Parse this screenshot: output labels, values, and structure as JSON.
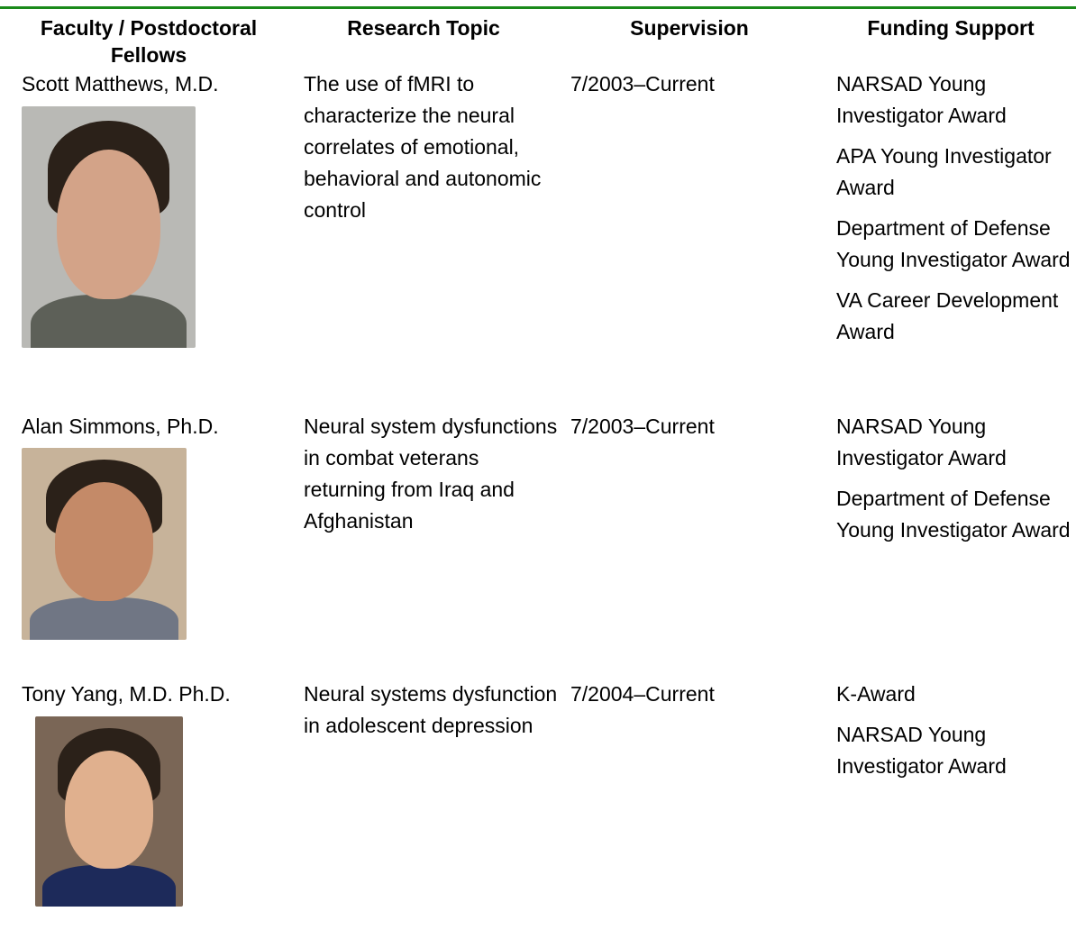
{
  "header": {
    "columns": [
      "Faculty / Postdoctoral Fellows",
      "Research Topic",
      "Supervision",
      "Funding Support"
    ]
  },
  "rows": [
    {
      "name": "Scott Matthews, M.D.",
      "topic": "The use of fMRI to characterize the neural correlates of emotional, behavioral and autonomic control",
      "supervision": "7/2003–Current",
      "funding": [
        "NARSAD Young Investigator Award",
        "APA Young Investigator Award",
        "Department of Defense Young Investigator Award",
        "VA Career Development Award"
      ]
    },
    {
      "name": "Alan Simmons, Ph.D.",
      "topic": "Neural system dysfunctions in combat veterans returning from Iraq and Afghanistan",
      "supervision": "7/2003–Current",
      "funding": [
        "NARSAD Young Investigator Award",
        "Department of Defense Young Investigator Award"
      ]
    },
    {
      "name": "Tony Yang, M.D. Ph.D.",
      "topic": "Neural systems dysfunction in adolescent depression",
      "supervision": "7/2004–Current",
      "funding": [
        "K-Award",
        "NARSAD Young Investigator Award"
      ]
    }
  ]
}
